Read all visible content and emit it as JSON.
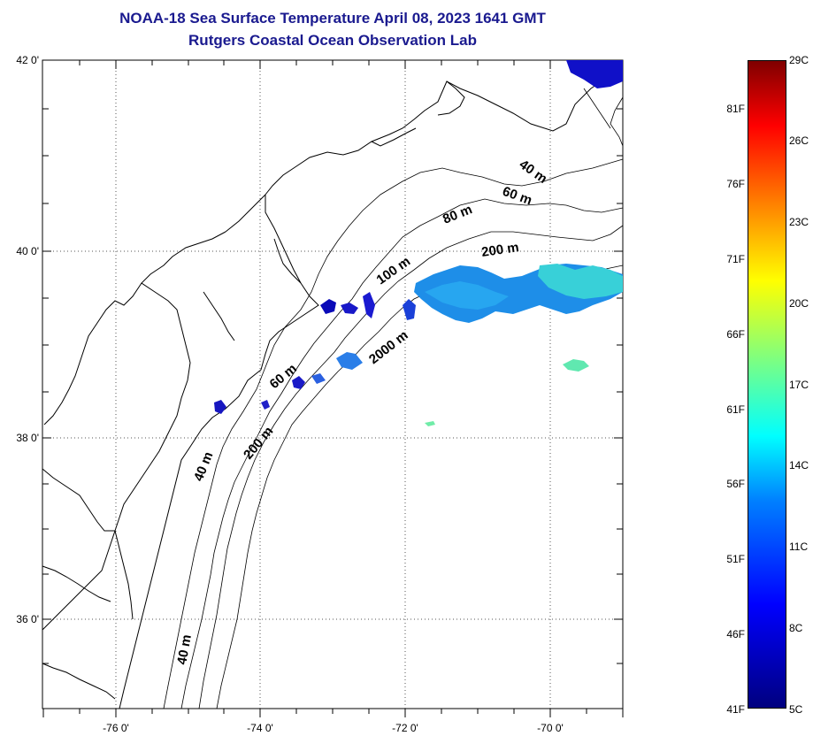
{
  "title": {
    "line1": "NOAA-18 Sea Surface Temperature April 08, 2023 1641 GMT",
    "line2": "Rutgers Coastal Ocean Observation Lab"
  },
  "axes": {
    "y_labels": [
      "42 0'",
      "40 0'",
      "38 0'",
      "36 0'"
    ],
    "x_labels": [
      "-76 0'",
      "-74 0'",
      "-72 0'",
      "-70 0'"
    ]
  },
  "contour_labels": [
    "40 m",
    "60 m",
    "80 m",
    "200 m",
    "100 m",
    "2000 m",
    "60 m",
    "200 m",
    "40 m",
    "40 m"
  ],
  "colorbar": {
    "fahrenheit": [
      "81F",
      "76F",
      "71F",
      "66F",
      "61F",
      "56F",
      "51F",
      "46F",
      "41F"
    ],
    "celsius": [
      "29C",
      "26C",
      "23C",
      "20C",
      "17C",
      "14C",
      "11C",
      "8C",
      "5C"
    ],
    "colors": [
      "#00007f",
      "#0000ff",
      "#0080ff",
      "#00ffff",
      "#7fff7f",
      "#ffff00",
      "#ff8000",
      "#ff0000",
      "#7f0000"
    ]
  }
}
